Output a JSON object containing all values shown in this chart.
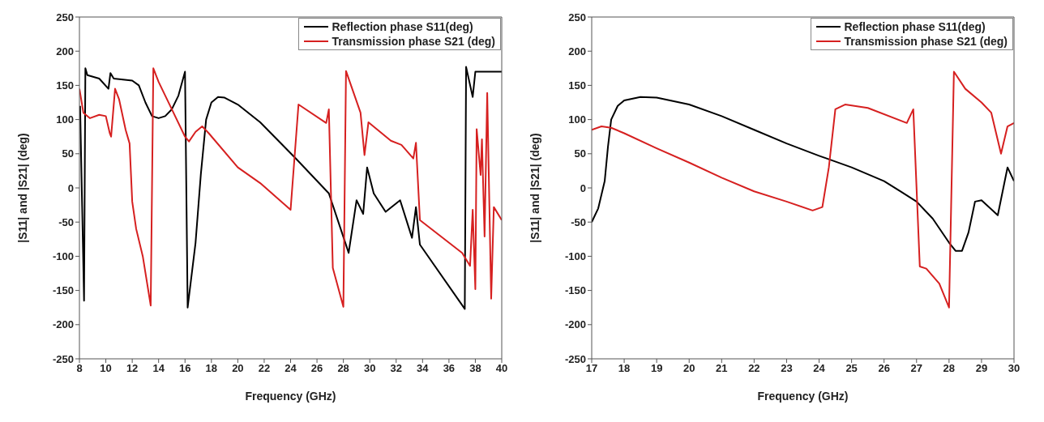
{
  "chart_data": [
    {
      "type": "line",
      "xlabel": "Frequency (GHz)",
      "ylabel": "|S11| and |S21| (deg)",
      "xlim": [
        8,
        40
      ],
      "xticks": [
        8,
        10,
        12,
        14,
        16,
        18,
        20,
        22,
        24,
        26,
        28,
        30,
        32,
        34,
        36,
        38,
        40
      ],
      "ylim": [
        -250,
        250
      ],
      "yticks": [
        -250,
        -200,
        -150,
        -100,
        -50,
        0,
        50,
        100,
        150,
        200,
        250
      ],
      "grid": false,
      "legend": "top right",
      "marker": "none",
      "line_style": "solid",
      "series": [
        {
          "name": "Reflection phase S11(deg)",
          "color": "#000000",
          "x": [
            8.05,
            8.35,
            8.45,
            8.6,
            9.5,
            10.2,
            10.35,
            10.6,
            12,
            12.5,
            13,
            13.5,
            14,
            14.5,
            15,
            15.5,
            16,
            16.2,
            16.8,
            17.2,
            17.6,
            18,
            18.5,
            19,
            20,
            21.7,
            24.4,
            26.9,
            28.4,
            29,
            29.5,
            29.8,
            30.3,
            31.2,
            32.3,
            33.2,
            33.5,
            33.8,
            37.2,
            37.3,
            37.8,
            38,
            40
          ],
          "values": [
            120,
            -165,
            175,
            165,
            160,
            145,
            168,
            160,
            157,
            150,
            125,
            105,
            102,
            105,
            115,
            135,
            170,
            -175,
            -80,
            20,
            100,
            125,
            133,
            132,
            122,
            96,
            43,
            -8,
            -95,
            -18,
            -38,
            30,
            -8,
            -35,
            -18,
            -73,
            -28,
            -83,
            -177,
            177,
            133,
            170,
            170
          ]
        },
        {
          "name": "Transmission phase S21 (deg)",
          "color": "#d62020",
          "x": [
            8,
            8.3,
            8.8,
            9.5,
            10,
            10.3,
            10.4,
            10.7,
            11,
            11.5,
            11.8,
            12,
            12.3,
            12.8,
            13.4,
            13.6,
            14,
            15,
            16,
            16.3,
            16.8,
            17.3,
            17.8,
            20,
            21.7,
            24,
            24.6,
            26.7,
            26.9,
            27.2,
            28,
            28.2,
            29.3,
            29.6,
            29.9,
            31.6,
            32.4,
            33.3,
            33.5,
            33.8,
            37,
            37.6,
            37.8,
            38,
            38.1,
            38.4,
            38.5,
            38.7,
            38.9,
            39.2,
            39.4,
            40
          ],
          "values": [
            145,
            110,
            102,
            107,
            105,
            80,
            75,
            145,
            130,
            85,
            65,
            -20,
            -60,
            -100,
            -172,
            175,
            155,
            115,
            75,
            68,
            82,
            90,
            80,
            30,
            7,
            -32,
            122,
            95,
            115,
            -117,
            -174,
            171,
            110,
            48,
            96,
            69,
            63,
            43,
            66,
            -47,
            -95,
            -114,
            -32,
            -148,
            86,
            19,
            71,
            -71,
            139,
            -162,
            -28,
            -47
          ]
        }
      ]
    },
    {
      "type": "line",
      "xlabel": "Frequency (GHz)",
      "ylabel": "|S11| and |S21| (deg)",
      "xlim": [
        17,
        30
      ],
      "xticks": [
        17,
        18,
        19,
        20,
        21,
        22,
        23,
        24,
        25,
        26,
        27,
        28,
        29,
        30
      ],
      "ylim": [
        -250,
        250
      ],
      "yticks": [
        -250,
        -200,
        -150,
        -100,
        -50,
        0,
        50,
        100,
        150,
        200,
        250
      ],
      "grid": false,
      "legend": "top right",
      "marker": "none",
      "line_style": "solid",
      "series": [
        {
          "name": "Reflection phase S11(deg)",
          "color": "#000000",
          "x": [
            17,
            17.2,
            17.4,
            17.5,
            17.6,
            17.8,
            18,
            18.5,
            19,
            20,
            21,
            22,
            23,
            24,
            25,
            26,
            26.5,
            27,
            27.5,
            28,
            28.2,
            28.4,
            28.6,
            28.8,
            29,
            29.5,
            29.8,
            30
          ],
          "values": [
            -50,
            -30,
            10,
            60,
            100,
            120,
            128,
            133,
            132,
            122,
            105,
            85,
            65,
            47,
            30,
            10,
            -5,
            -20,
            -45,
            -80,
            -92,
            -92,
            -65,
            -20,
            -18,
            -40,
            30,
            10
          ]
        },
        {
          "name": "Transmission phase S21 (deg)",
          "color": "#d62020",
          "x": [
            17,
            17.3,
            17.6,
            18,
            19,
            20,
            21,
            22,
            23,
            23.8,
            24.1,
            24.3,
            24.5,
            24.8,
            25.5,
            26.7,
            26.9,
            27.1,
            27.3,
            27.7,
            28,
            28.15,
            28.5,
            29,
            29.3,
            29.6,
            29.8,
            30
          ],
          "values": [
            85,
            90,
            88,
            80,
            58,
            37,
            15,
            -5,
            -20,
            -33,
            -28,
            30,
            115,
            122,
            117,
            95,
            115,
            -115,
            -118,
            -140,
            -175,
            170,
            145,
            125,
            110,
            50,
            90,
            95
          ]
        }
      ]
    }
  ]
}
